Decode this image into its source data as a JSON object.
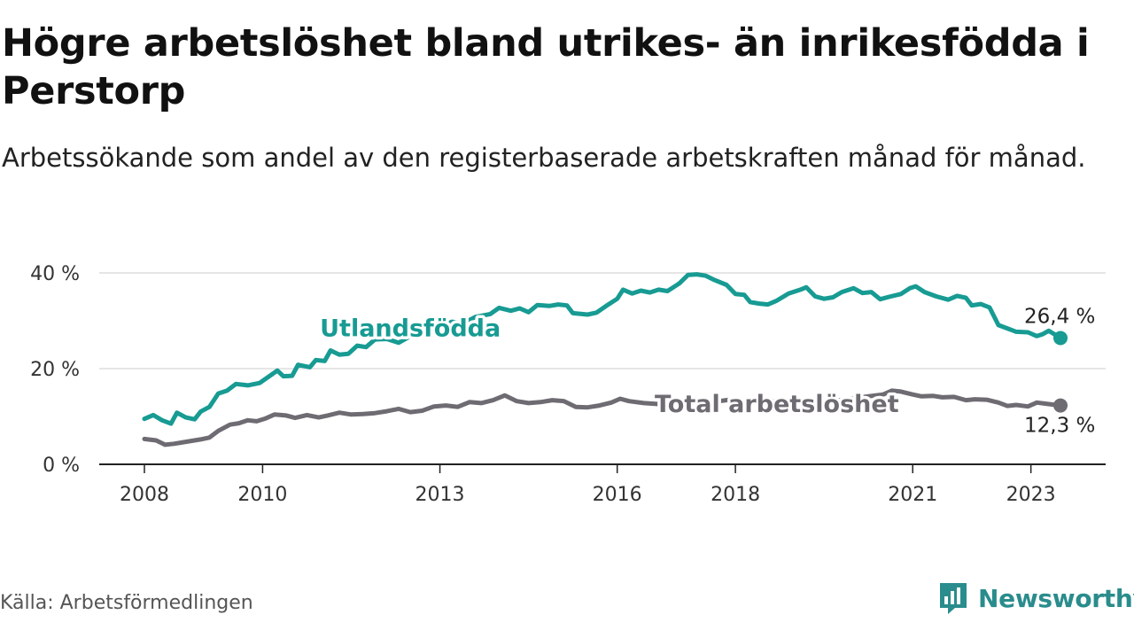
{
  "header": {
    "title": "Högre arbetslöshet bland utrikes- än inrikesfödda i Perstorp",
    "subtitle": "Arbetssökande som andel av den registerbaserade arbetskraften månad för månad."
  },
  "footer": {
    "source": "Källa: Arbetsförmedlingen",
    "brand": "Newsworthy"
  },
  "colors": {
    "foreign": "#179b93",
    "total": "#6e6b72",
    "grid": "#dddddd",
    "axis": "#222222",
    "brand": "#2a8c8c"
  },
  "chart_data": {
    "type": "line",
    "title": "Högre arbetslöshet bland utrikes- än inrikesfödda i Perstorp",
    "xlabel": "",
    "ylabel": "",
    "xlim": [
      2008.0,
      2023.5
    ],
    "ylim": [
      0,
      40
    ],
    "y_ticks": [
      {
        "value": 0,
        "label": "0 %"
      },
      {
        "value": 20,
        "label": "20 %"
      },
      {
        "value": 40,
        "label": "40 %"
      }
    ],
    "x_ticks": [
      {
        "value": 2008,
        "label": "2008"
      },
      {
        "value": 2010,
        "label": "2010"
      },
      {
        "value": 2013,
        "label": "2013"
      },
      {
        "value": 2016,
        "label": "2016"
      },
      {
        "value": 2018,
        "label": "2018"
      },
      {
        "value": 2021,
        "label": "2021"
      },
      {
        "value": 2023,
        "label": "2023"
      }
    ],
    "grid": true,
    "series": [
      {
        "name": "Utlandsfödda",
        "color": "#179b93",
        "end_label": "26,4 %",
        "points": [
          [
            2008.0,
            9.5
          ],
          [
            2008.15,
            10.3
          ],
          [
            2008.3,
            9.2
          ],
          [
            2008.45,
            8.5
          ],
          [
            2008.55,
            10.8
          ],
          [
            2008.7,
            9.8
          ],
          [
            2008.85,
            9.4
          ],
          [
            2008.95,
            11.0
          ],
          [
            2009.1,
            12.0
          ],
          [
            2009.25,
            14.8
          ],
          [
            2009.4,
            15.4
          ],
          [
            2009.55,
            16.8
          ],
          [
            2009.75,
            16.5
          ],
          [
            2009.95,
            17.0
          ],
          [
            2010.1,
            18.3
          ],
          [
            2010.25,
            19.6
          ],
          [
            2010.35,
            18.4
          ],
          [
            2010.5,
            18.5
          ],
          [
            2010.6,
            20.8
          ],
          [
            2010.8,
            20.3
          ],
          [
            2010.9,
            21.8
          ],
          [
            2011.05,
            21.6
          ],
          [
            2011.15,
            23.8
          ],
          [
            2011.3,
            22.9
          ],
          [
            2011.45,
            23.1
          ],
          [
            2011.6,
            24.8
          ],
          [
            2011.75,
            24.5
          ],
          [
            2011.9,
            26.1
          ],
          [
            2012.1,
            26.2
          ],
          [
            2012.3,
            25.4
          ],
          [
            2012.5,
            26.8
          ],
          [
            2012.75,
            27.2
          ],
          [
            2013.0,
            28.6
          ],
          [
            2013.2,
            29.8
          ],
          [
            2013.4,
            29.5
          ],
          [
            2013.6,
            30.8
          ],
          [
            2013.85,
            31.4
          ],
          [
            2014.0,
            32.7
          ],
          [
            2014.2,
            32.1
          ],
          [
            2014.35,
            32.6
          ],
          [
            2014.5,
            31.8
          ],
          [
            2014.65,
            33.3
          ],
          [
            2014.85,
            33.1
          ],
          [
            2015.0,
            33.4
          ],
          [
            2015.15,
            33.2
          ],
          [
            2015.25,
            31.6
          ],
          [
            2015.5,
            31.3
          ],
          [
            2015.65,
            31.7
          ],
          [
            2015.85,
            33.4
          ],
          [
            2016.0,
            34.6
          ],
          [
            2016.1,
            36.5
          ],
          [
            2016.25,
            35.7
          ],
          [
            2016.4,
            36.3
          ],
          [
            2016.55,
            35.9
          ],
          [
            2016.7,
            36.5
          ],
          [
            2016.85,
            36.2
          ],
          [
            2017.05,
            37.8
          ],
          [
            2017.2,
            39.6
          ],
          [
            2017.35,
            39.7
          ],
          [
            2017.5,
            39.4
          ],
          [
            2017.65,
            38.5
          ],
          [
            2017.85,
            37.5
          ],
          [
            2018.0,
            35.6
          ],
          [
            2018.15,
            35.4
          ],
          [
            2018.25,
            33.9
          ],
          [
            2018.4,
            33.6
          ],
          [
            2018.55,
            33.4
          ],
          [
            2018.7,
            34.2
          ],
          [
            2018.9,
            35.7
          ],
          [
            2019.1,
            36.5
          ],
          [
            2019.2,
            37.0
          ],
          [
            2019.35,
            35.1
          ],
          [
            2019.5,
            34.6
          ],
          [
            2019.65,
            34.9
          ],
          [
            2019.8,
            36.0
          ],
          [
            2020.0,
            36.8
          ],
          [
            2020.15,
            35.8
          ],
          [
            2020.3,
            36.0
          ],
          [
            2020.45,
            34.5
          ],
          [
            2020.6,
            35.0
          ],
          [
            2020.8,
            35.6
          ],
          [
            2020.95,
            36.8
          ],
          [
            2021.05,
            37.2
          ],
          [
            2021.2,
            36.0
          ],
          [
            2021.4,
            35.1
          ],
          [
            2021.6,
            34.4
          ],
          [
            2021.75,
            35.2
          ],
          [
            2021.9,
            34.8
          ],
          [
            2022.0,
            33.2
          ],
          [
            2022.15,
            33.5
          ],
          [
            2022.3,
            32.8
          ],
          [
            2022.45,
            29.1
          ],
          [
            2022.6,
            28.4
          ],
          [
            2022.75,
            27.7
          ],
          [
            2022.95,
            27.6
          ],
          [
            2023.1,
            26.8
          ],
          [
            2023.2,
            27.2
          ],
          [
            2023.3,
            27.9
          ],
          [
            2023.5,
            26.4
          ]
        ]
      },
      {
        "name": "Total arbetslöshet",
        "color": "#6e6b72",
        "end_label": "12,3 %",
        "points": [
          [
            2008.0,
            5.3
          ],
          [
            2008.2,
            5.0
          ],
          [
            2008.35,
            4.1
          ],
          [
            2008.5,
            4.3
          ],
          [
            2008.7,
            4.7
          ],
          [
            2008.95,
            5.2
          ],
          [
            2009.1,
            5.6
          ],
          [
            2009.25,
            7.0
          ],
          [
            2009.45,
            8.3
          ],
          [
            2009.6,
            8.6
          ],
          [
            2009.75,
            9.2
          ],
          [
            2009.9,
            9.0
          ],
          [
            2010.05,
            9.6
          ],
          [
            2010.2,
            10.4
          ],
          [
            2010.4,
            10.2
          ],
          [
            2010.55,
            9.7
          ],
          [
            2010.75,
            10.3
          ],
          [
            2010.95,
            9.8
          ],
          [
            2011.1,
            10.2
          ],
          [
            2011.3,
            10.8
          ],
          [
            2011.5,
            10.4
          ],
          [
            2011.7,
            10.5
          ],
          [
            2011.9,
            10.7
          ],
          [
            2012.1,
            11.1
          ],
          [
            2012.3,
            11.6
          ],
          [
            2012.5,
            10.9
          ],
          [
            2012.7,
            11.2
          ],
          [
            2012.9,
            12.1
          ],
          [
            2013.1,
            12.3
          ],
          [
            2013.3,
            12.0
          ],
          [
            2013.5,
            13.0
          ],
          [
            2013.7,
            12.8
          ],
          [
            2013.9,
            13.4
          ],
          [
            2014.1,
            14.4
          ],
          [
            2014.3,
            13.2
          ],
          [
            2014.5,
            12.8
          ],
          [
            2014.7,
            13.0
          ],
          [
            2014.9,
            13.4
          ],
          [
            2015.1,
            13.2
          ],
          [
            2015.3,
            12.0
          ],
          [
            2015.5,
            11.9
          ],
          [
            2015.7,
            12.3
          ],
          [
            2015.9,
            12.9
          ],
          [
            2016.05,
            13.7
          ],
          [
            2016.2,
            13.2
          ],
          [
            2016.45,
            12.8
          ],
          [
            2016.7,
            12.6
          ],
          [
            2017.0,
            13.4
          ],
          [
            2017.3,
            13.8
          ],
          [
            2017.6,
            13.0
          ],
          [
            2017.9,
            13.5
          ],
          [
            2018.2,
            12.9
          ],
          [
            2018.5,
            13.4
          ],
          [
            2018.8,
            13.0
          ],
          [
            2019.1,
            13.5
          ],
          [
            2019.4,
            12.9
          ],
          [
            2019.7,
            13.3
          ],
          [
            2020.0,
            13.8
          ],
          [
            2020.3,
            14.3
          ],
          [
            2020.5,
            14.6
          ],
          [
            2020.65,
            15.4
          ],
          [
            2020.8,
            15.2
          ],
          [
            2021.0,
            14.6
          ],
          [
            2021.15,
            14.2
          ],
          [
            2021.35,
            14.3
          ],
          [
            2021.5,
            14.0
          ],
          [
            2021.7,
            14.1
          ],
          [
            2021.9,
            13.4
          ],
          [
            2022.05,
            13.6
          ],
          [
            2022.25,
            13.5
          ],
          [
            2022.45,
            12.9
          ],
          [
            2022.6,
            12.2
          ],
          [
            2022.75,
            12.4
          ],
          [
            2022.95,
            12.1
          ],
          [
            2023.1,
            12.9
          ],
          [
            2023.3,
            12.6
          ],
          [
            2023.5,
            12.3
          ]
        ]
      }
    ],
    "annotations": [
      {
        "text": "Utlandsfödda",
        "series": 0,
        "x": 2012.5,
        "y": 28.4
      },
      {
        "text": "Total arbetslöshet",
        "series": 1,
        "x": 2018.7,
        "y": 12.6
      }
    ]
  }
}
